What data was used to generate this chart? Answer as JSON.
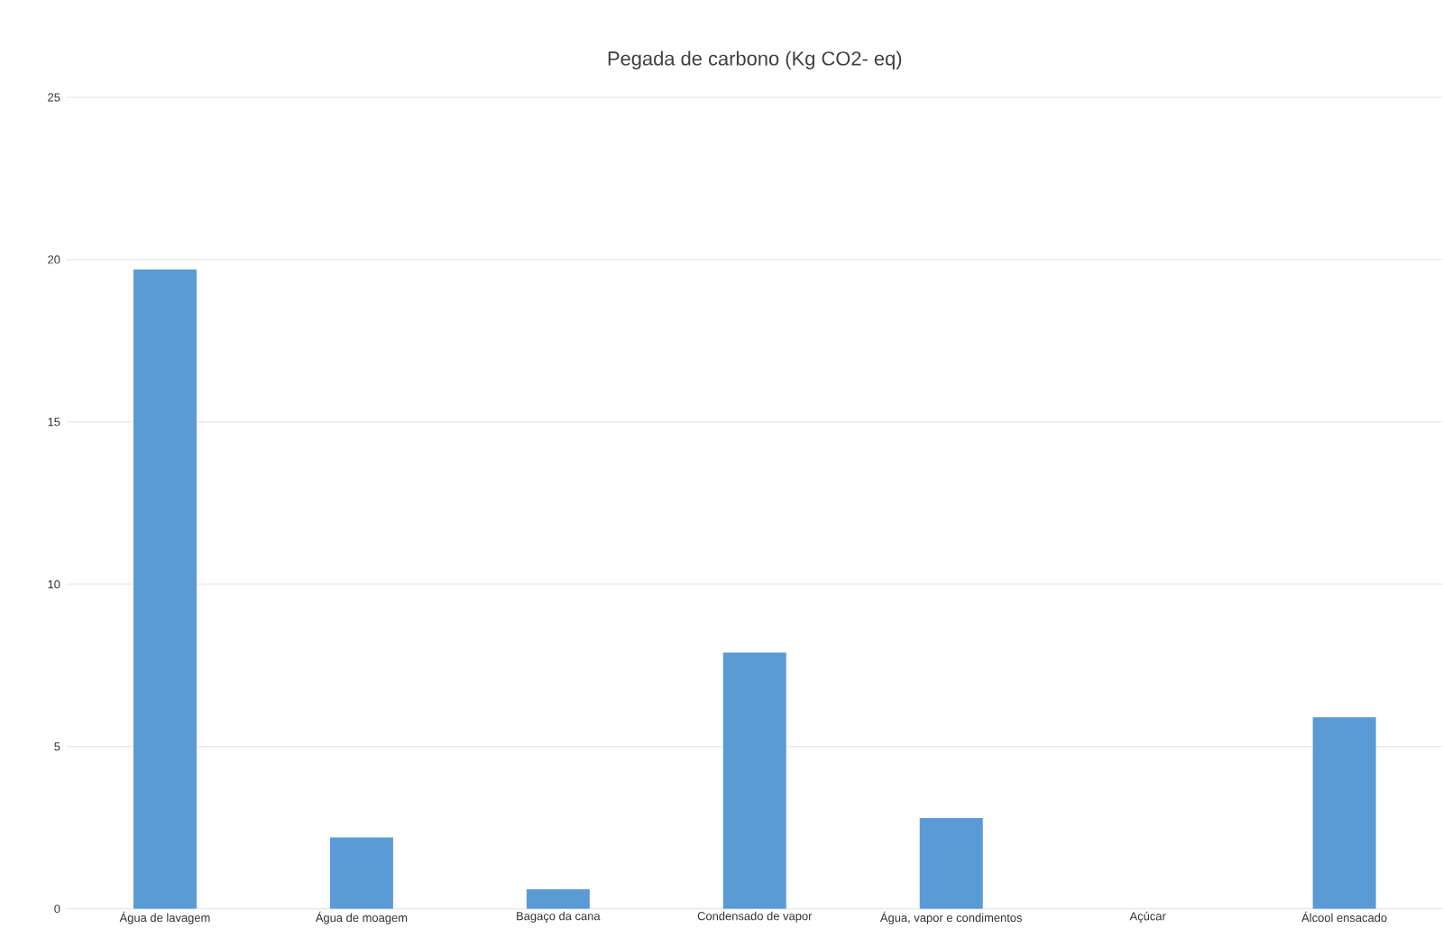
{
  "chart_data": {
    "type": "bar",
    "title": "Pegada de carbono (Kg CO2- eq)",
    "categories": [
      "Água de lavagem",
      "Água de moagem",
      "Bagaço da cana",
      "Condensado de vapor",
      "Água, vapor e condimentos",
      "Açúcar",
      "Álcool ensacado"
    ],
    "values": [
      19.7,
      2.2,
      0.6,
      7.9,
      2.8,
      0,
      5.9
    ],
    "color": "#5b9bd5",
    "ylim": [
      0,
      25
    ],
    "yticks": [
      0,
      5,
      10,
      15,
      20,
      25
    ],
    "grid": "y"
  }
}
